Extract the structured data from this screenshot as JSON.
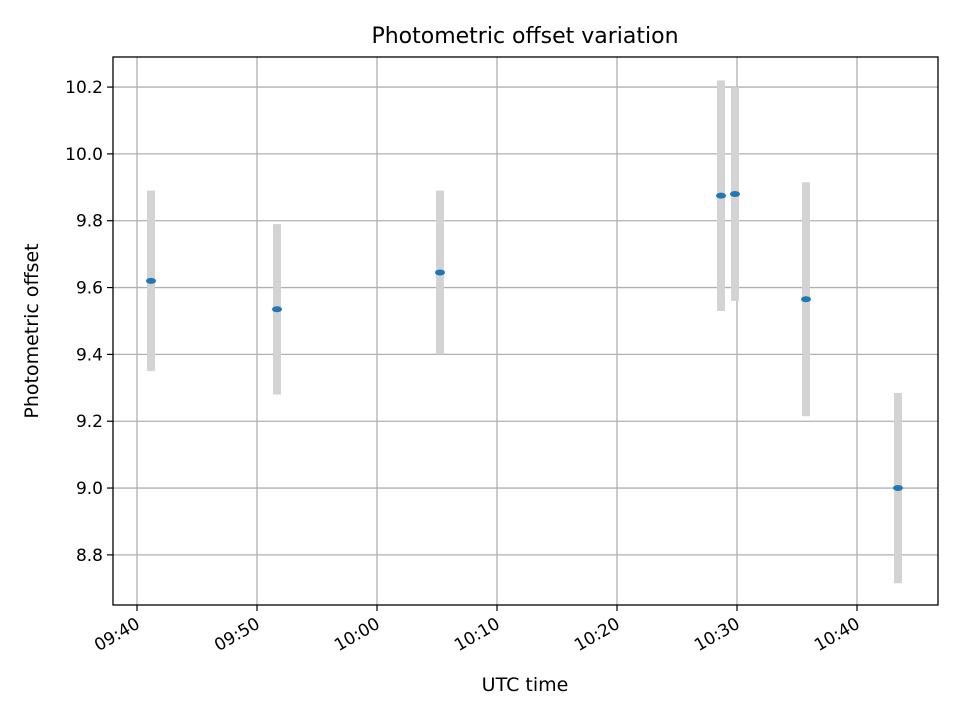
{
  "chart_data": {
    "type": "scatter",
    "title": "Photometric offset variation",
    "xlabel": "UTC time",
    "ylabel": "Photometric offset",
    "x_ticks": [
      "09:40",
      "09:50",
      "10:00",
      "10:10",
      "10:20",
      "10:30",
      "10:40"
    ],
    "y_ticks": [
      "8.8",
      "9.0",
      "9.2",
      "9.4",
      "9.6",
      "9.8",
      "10.0",
      "10.2"
    ],
    "ylim": [
      8.65,
      10.29
    ],
    "xlim": [
      "09:38:00",
      "10:46:45"
    ],
    "grid": true,
    "points": [
      {
        "x": "09:41:10",
        "y": 9.62,
        "err": 0.27
      },
      {
        "x": "09:51:40",
        "y": 9.535,
        "err": 0.255
      },
      {
        "x": "10:05:15",
        "y": 9.645,
        "err": 0.245
      },
      {
        "x": "10:28:40",
        "y": 9.875,
        "err": 0.345
      },
      {
        "x": "10:29:50",
        "y": 9.88,
        "err": 0.32
      },
      {
        "x": "10:35:45",
        "y": 9.565,
        "err": 0.35
      },
      {
        "x": "10:43:25",
        "y": 9.0,
        "err": 0.285
      }
    ],
    "colors": {
      "marker": "#1f77b4",
      "errorbar": "#d3d3d3",
      "grid": "#b0b0b0"
    }
  }
}
